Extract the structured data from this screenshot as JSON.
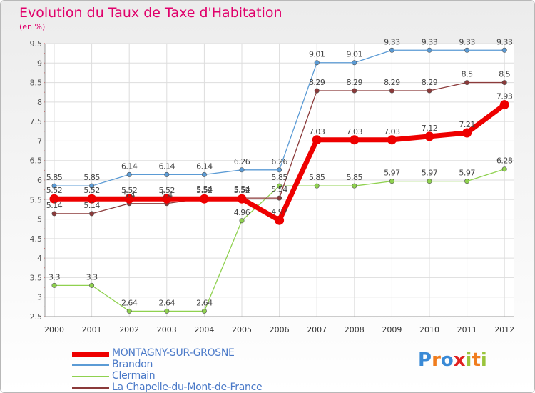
{
  "title": "Evolution du Taux de Taxe d'Habitation",
  "unit_label": "(en %)",
  "logo": {
    "letters": [
      "P",
      "r",
      "o",
      "x",
      "i",
      "t",
      "i"
    ],
    "colors": [
      "#3a8ad6",
      "#f07d1e",
      "#3a8ad6",
      "#e02020",
      "#9ac43c",
      "#f07d1e",
      "#9ac43c"
    ]
  },
  "chart_data": {
    "type": "line",
    "x": [
      2000,
      2001,
      2002,
      2003,
      2004,
      2005,
      2006,
      2007,
      2008,
      2009,
      2010,
      2011,
      2012
    ],
    "ylim": [
      2.5,
      9.5
    ],
    "yticks": [
      "2.5",
      "3",
      "3.5",
      "4",
      "4.5",
      "5",
      "5.5",
      "6",
      "6.5",
      "7",
      "7.5",
      "8",
      "8.5",
      "9",
      "9.5"
    ],
    "grid": true,
    "legend_position": "bottom-left",
    "series": [
      {
        "name": "MONTAGNY-SUR-GROSNE",
        "color": "#ee0000",
        "values": [
          5.52,
          5.52,
          5.52,
          5.52,
          5.52,
          5.52,
          4.97,
          7.03,
          7.03,
          7.03,
          7.12,
          7.21,
          7.93
        ],
        "labels": [
          "5.52",
          "5.52",
          "5.52",
          "5.52",
          "5.52",
          "5.52",
          "4.97",
          "7.03",
          "7.03",
          "7.03",
          "7.12",
          "7.21",
          "7.93"
        ]
      },
      {
        "name": "Brandon",
        "color": "#5b9bd5",
        "values": [
          5.85,
          5.85,
          6.14,
          6.14,
          6.14,
          6.26,
          6.26,
          9.01,
          9.01,
          9.33,
          9.33,
          9.33,
          9.33
        ],
        "labels": [
          "5.85",
          "5.85",
          "6.14",
          "6.14",
          "6.14",
          "6.26",
          "6.26",
          "9.01",
          "9.01",
          "9.33",
          "9.33",
          "9.33",
          "9.33"
        ]
      },
      {
        "name": "Clermain",
        "color": "#8fd14f",
        "values": [
          3.3,
          3.3,
          2.64,
          2.64,
          2.64,
          4.96,
          5.85,
          5.85,
          5.85,
          5.97,
          5.97,
          5.97,
          6.28
        ],
        "labels": [
          "3.3",
          "3.3",
          "2.64",
          "2.64",
          "2.64",
          "4.96",
          "5.85",
          "5.85",
          "5.85",
          "5.97",
          "5.97",
          "5.97",
          "6.28"
        ]
      },
      {
        "name": "La Chapelle-du-Mont-de-France",
        "color": "#8b3a3a",
        "values": [
          5.14,
          5.14,
          5.4,
          5.4,
          5.54,
          5.54,
          5.54,
          8.29,
          8.29,
          8.29,
          8.29,
          8.5,
          8.5
        ],
        "labels": [
          "5.14",
          "5.14",
          "5.4",
          "5.4",
          "5.54",
          "5.54",
          "5.54",
          "8.29",
          "8.29",
          "8.29",
          "8.29",
          "8.5",
          "8.5"
        ]
      }
    ]
  }
}
